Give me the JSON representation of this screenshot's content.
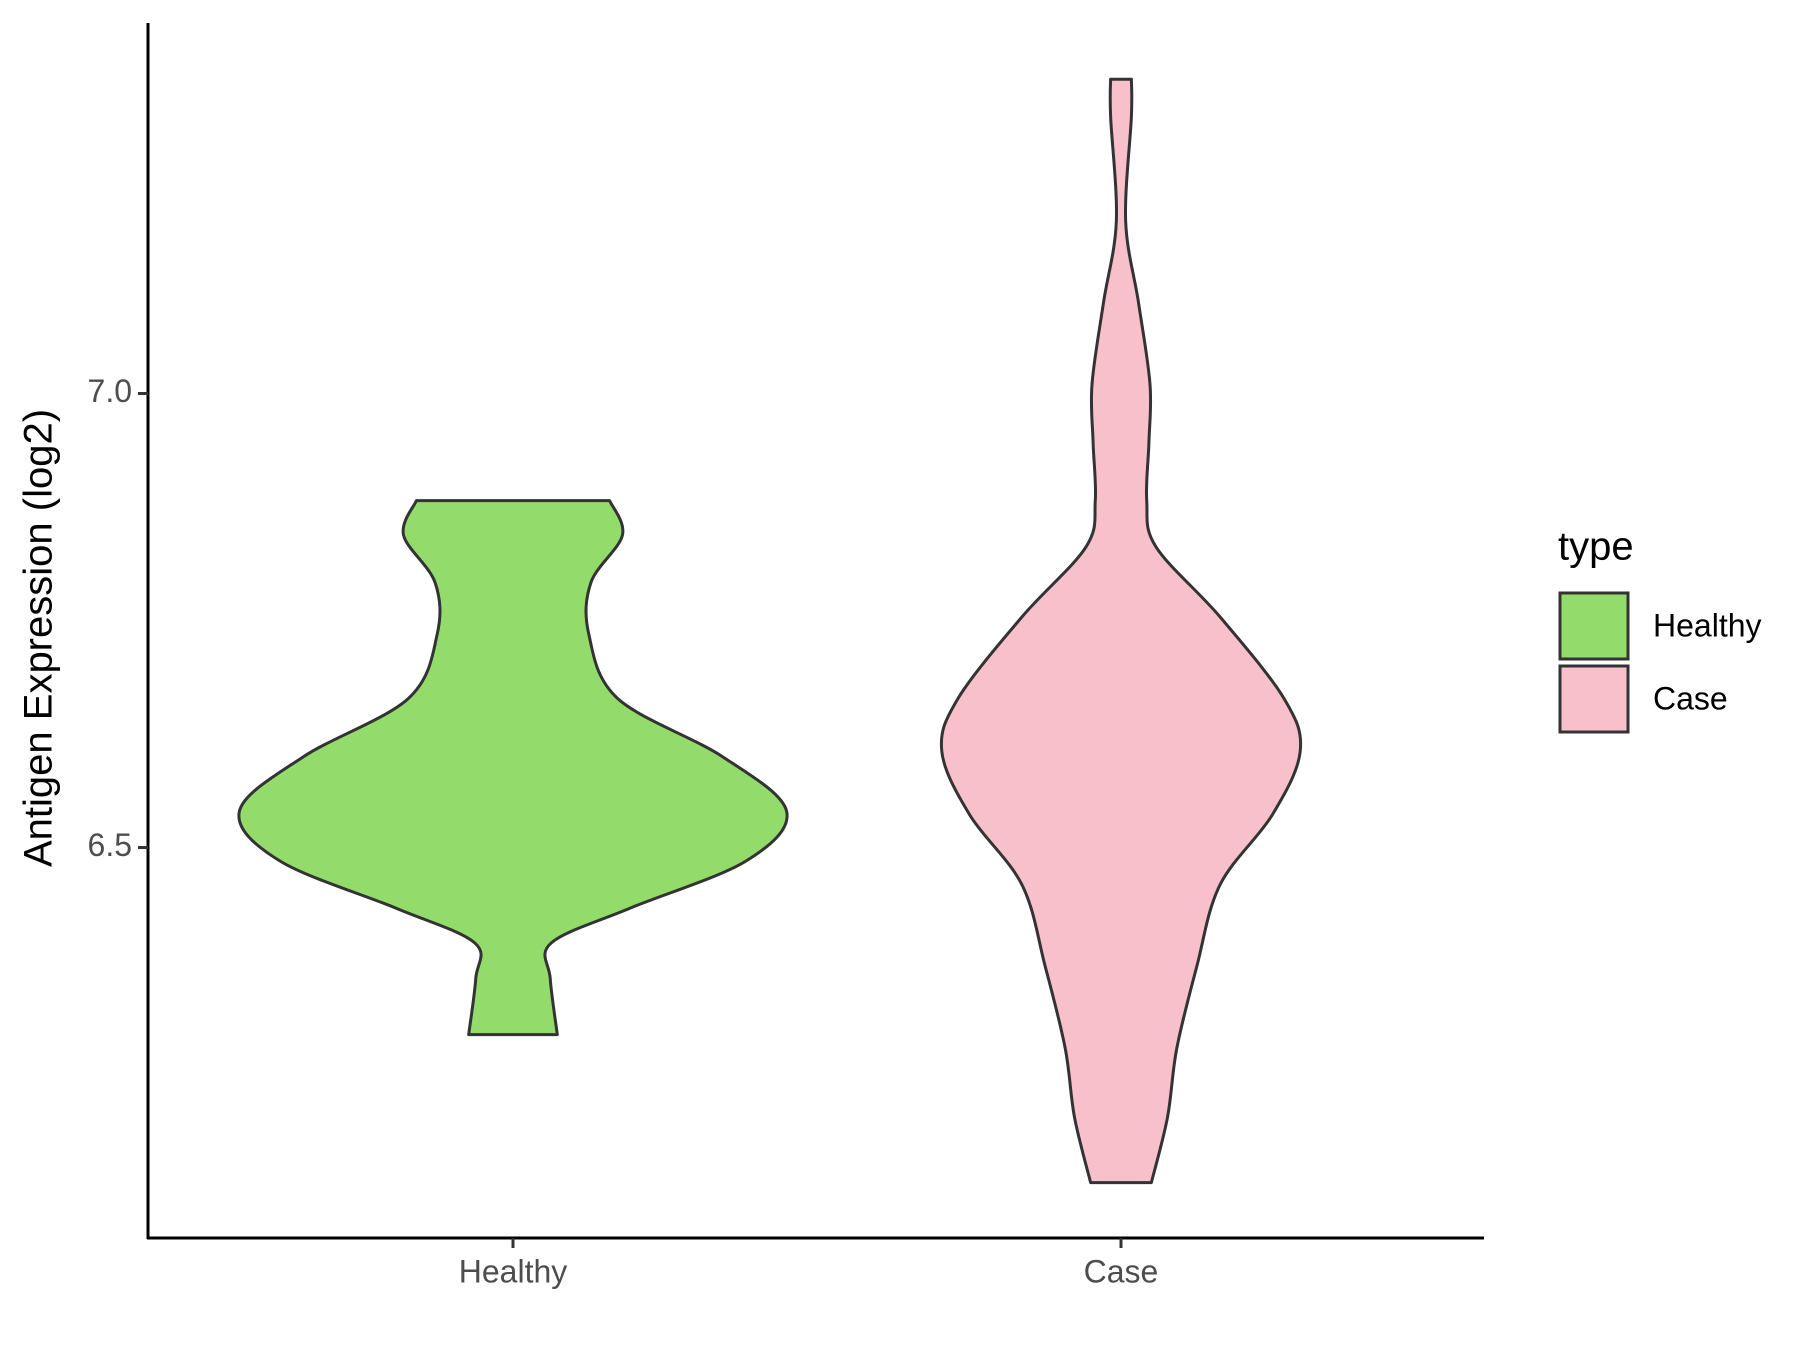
{
  "chart_data": {
    "type": "violin",
    "y_label": "Antigen Expression (log2)",
    "categories": [
      "Healthy",
      "Case"
    ],
    "legend_title": "type",
    "legend_position": "right",
    "ylim": [
      6.07,
      7.408
    ],
    "yticks": [
      6.5,
      {
        "value": 7,
        "label": "7.0"
      }
    ],
    "series": [
      {
        "name": "Healthy",
        "color": "#93dc6c",
        "y": [
          6.882,
          6.844,
          6.792,
          6.735,
          6.664,
          6.6,
          6.54,
          6.485,
          6.433,
          6.395,
          6.356,
          6.294
        ],
        "density": [
          0.353,
          0.4,
          0.285,
          0.277,
          0.383,
          0.766,
          1.0,
          0.851,
          0.426,
          0.14,
          0.136,
          0.162
        ]
      },
      {
        "name": "Case",
        "color": "#f7c0cb",
        "y": [
          7.346,
          7.305,
          7.19,
          7.1,
          7.01,
          6.946,
          6.882,
          6.831,
          6.754,
          6.664,
          6.606,
          6.536,
          6.459,
          6.369,
          6.279,
          6.203,
          6.131
        ],
        "density": [
          0.038,
          0.038,
          0.017,
          0.064,
          0.106,
          0.102,
          0.094,
          0.128,
          0.362,
          0.596,
          0.655,
          0.553,
          0.362,
          0.277,
          0.204,
          0.17,
          0.111
        ]
      }
    ]
  }
}
